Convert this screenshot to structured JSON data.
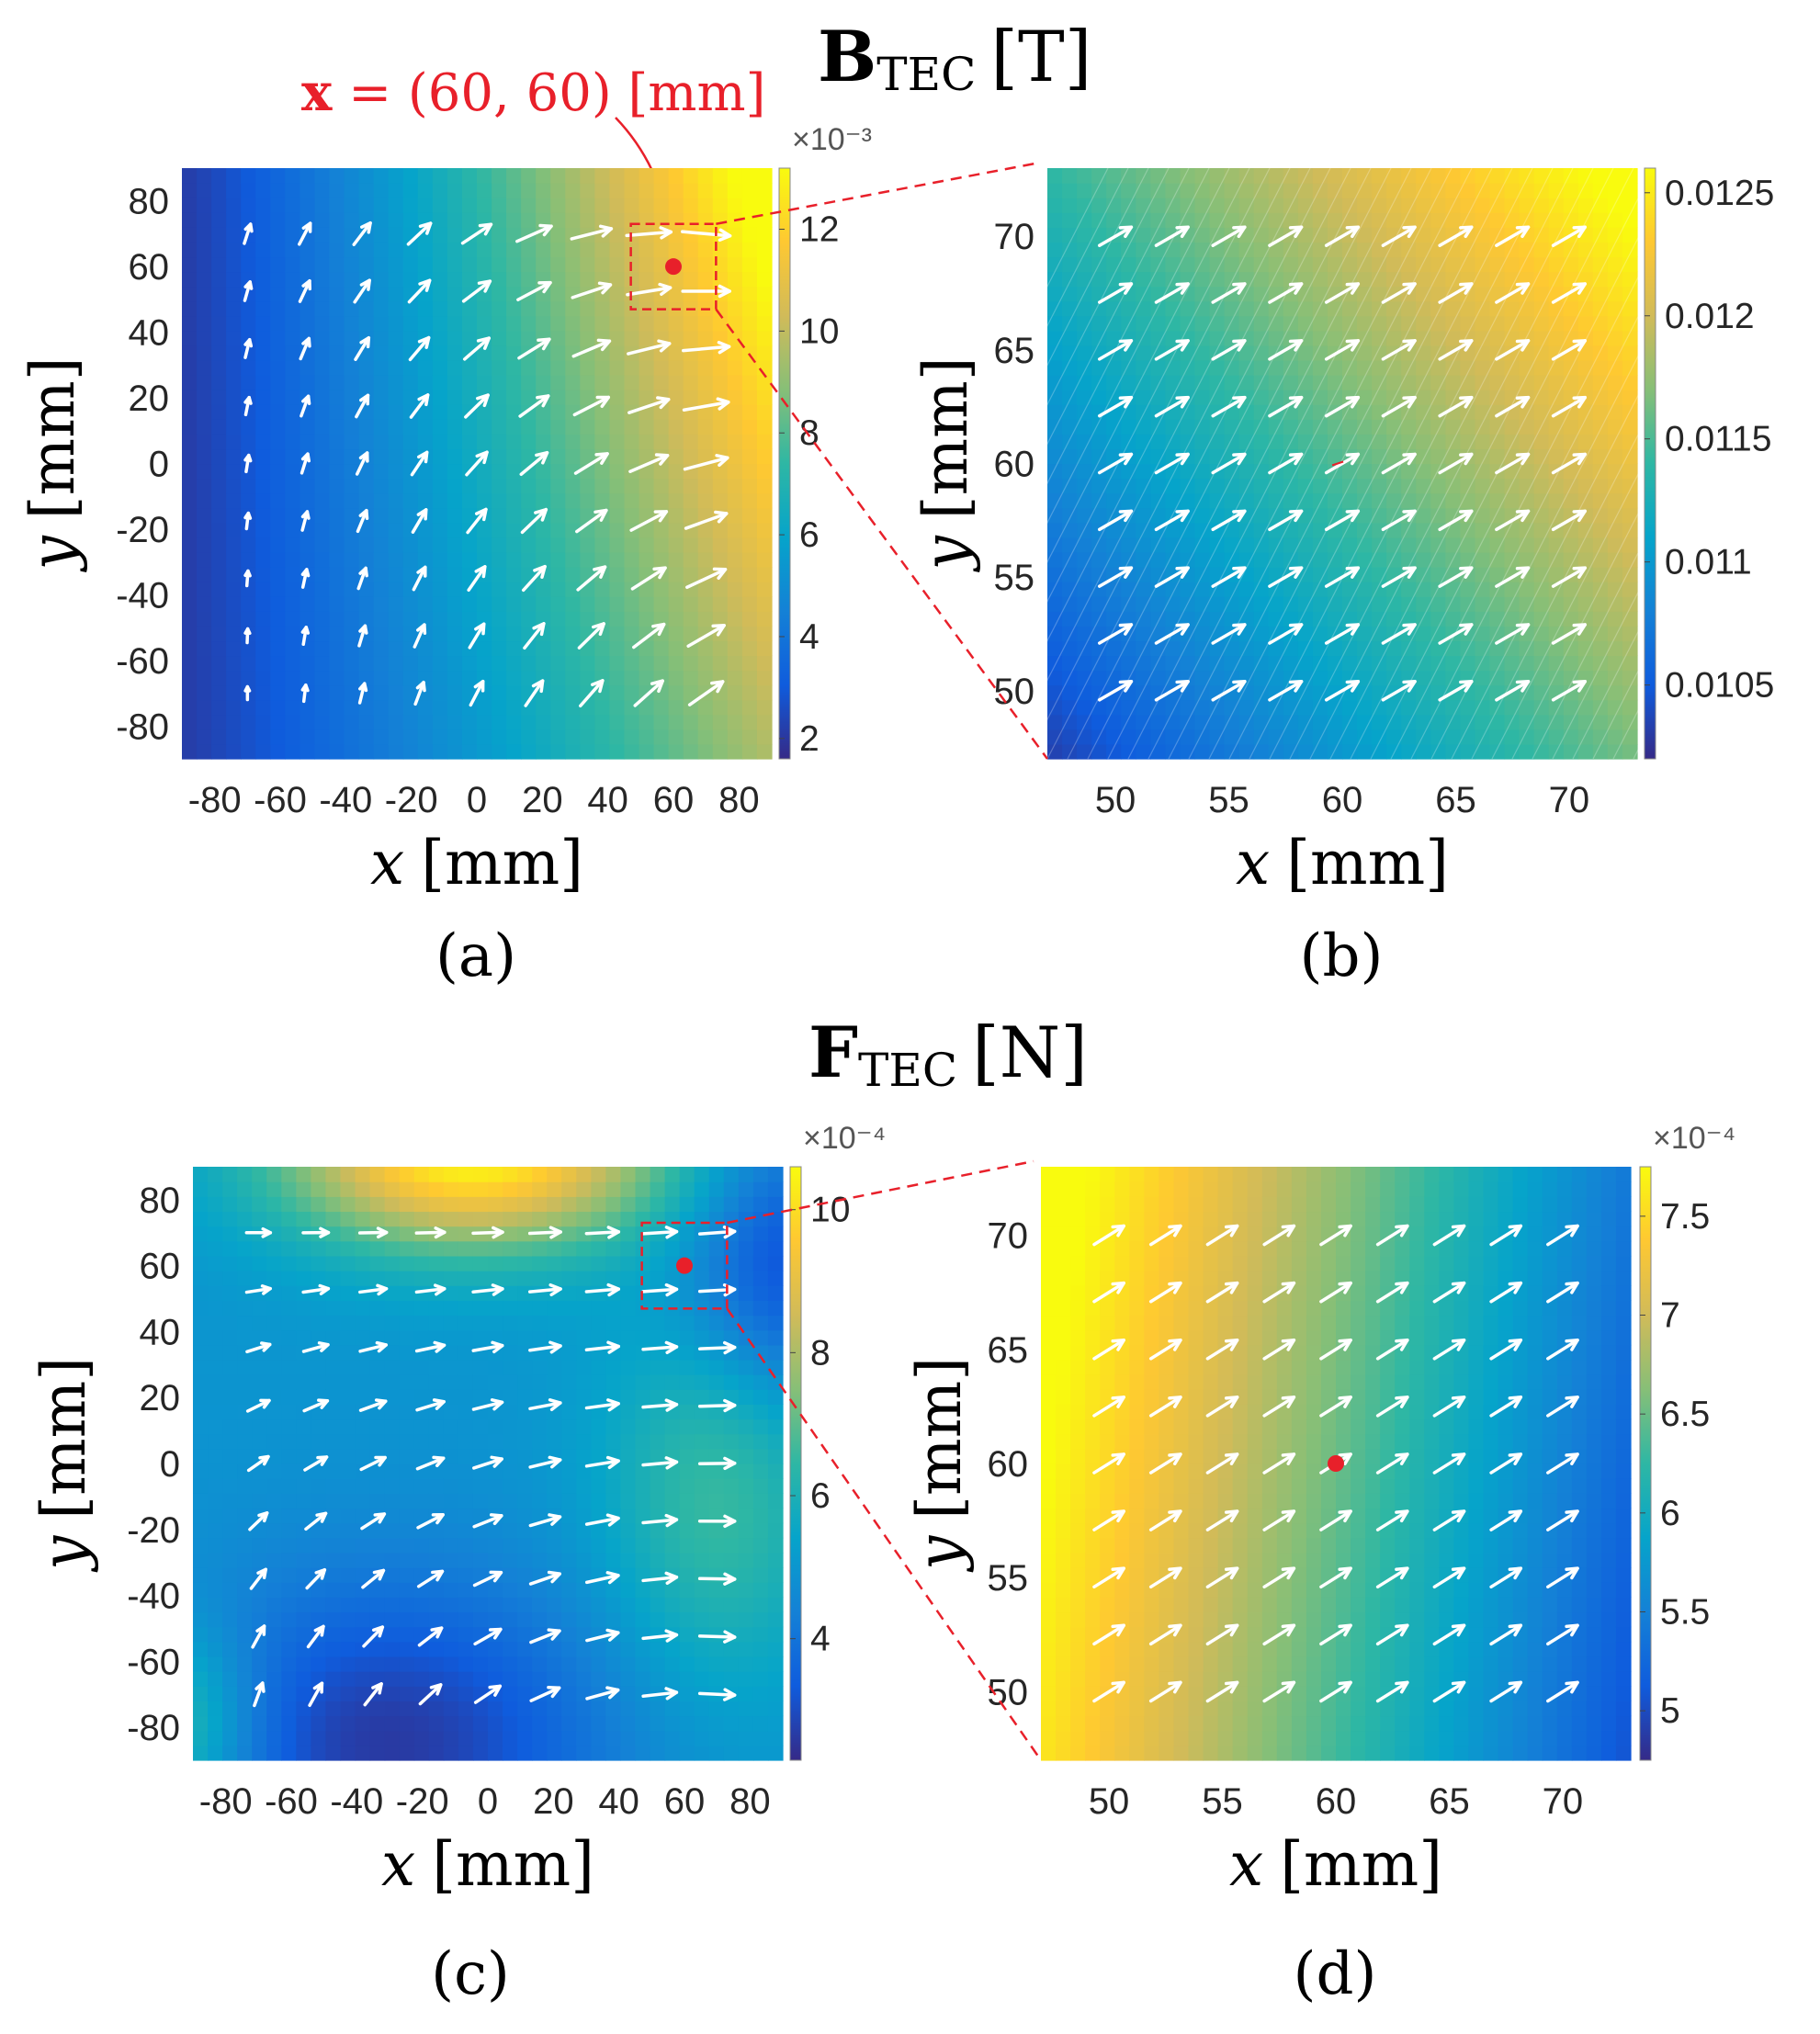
{
  "colors": {
    "annotation_red": "#e8202a",
    "arrow_white": "#ffffff",
    "colormap_parula": [
      "#352a87",
      "#0f5cdd",
      "#1481d6",
      "#06a4ca",
      "#2eb7a4",
      "#87bf77",
      "#d1bb59",
      "#fec832",
      "#f9fb0e"
    ]
  },
  "sections": [
    {
      "title_main": "B",
      "title_sub": "TEC",
      "title_unit": "[T]"
    },
    {
      "title_main": "F",
      "title_sub": "TEC",
      "title_unit": "[N]"
    }
  ],
  "callout": {
    "text": "x = (60, 60) [mm]",
    "bold_part": "x",
    "rest": " = (60, 60) [mm]"
  },
  "chart_data": [
    {
      "id": "a",
      "panel_label": "(a)",
      "type": "heatmap",
      "quantity": "B_TEC",
      "unit": "T",
      "xlabel_var": "x",
      "xlabel_unit": "[mm]",
      "ylabel_var": "y",
      "ylabel_unit": "[mm]",
      "xlim": [
        -90,
        90
      ],
      "ylim": [
        -90,
        90
      ],
      "xticks": [
        -80,
        -60,
        -40,
        -20,
        0,
        20,
        40,
        60,
        80
      ],
      "yticks": [
        -80,
        -60,
        -40,
        -20,
        0,
        20,
        40,
        60,
        80
      ],
      "colorbar": {
        "min": 0.0016,
        "max": 0.0132,
        "ticks": [
          2,
          4,
          6,
          8,
          10,
          12
        ],
        "exponent_label": "×10⁻³"
      },
      "vector_grid": {
        "x": [
          -70,
          -52.5,
          -35,
          -17.5,
          0,
          17.5,
          35,
          52.5,
          70
        ],
        "y": [
          -70,
          -52.5,
          -35,
          -17.5,
          0,
          17.5,
          35,
          52.5,
          70
        ]
      },
      "marker": {
        "x": 60,
        "y": 60
      },
      "zoom_box": {
        "x": [
          47,
          73
        ],
        "y": [
          47,
          73
        ]
      }
    },
    {
      "id": "b",
      "panel_label": "(b)",
      "type": "heatmap",
      "quantity": "B_TEC",
      "unit": "T",
      "xlabel_var": "x",
      "xlabel_unit": "[mm]",
      "ylabel_var": "y",
      "ylabel_unit": "[mm]",
      "xlim": [
        47,
        73
      ],
      "ylim": [
        47,
        73
      ],
      "xticks": [
        50,
        55,
        60,
        65,
        70
      ],
      "yticks": [
        50,
        55,
        60,
        65,
        70
      ],
      "colorbar": {
        "min": 0.0102,
        "max": 0.0126,
        "ticks": [
          "0.0105",
          "0.011",
          "0.0115",
          "0.012",
          "0.0125"
        ]
      },
      "vector_grid": {
        "x": [
          50,
          52.5,
          55,
          57.5,
          60,
          62.5,
          65,
          67.5,
          70
        ],
        "y": [
          50,
          52.5,
          55,
          57.5,
          60,
          62.5,
          65,
          67.5,
          70
        ]
      },
      "marker": {
        "x": 60,
        "y": 60
      }
    },
    {
      "id": "c",
      "panel_label": "(c)",
      "type": "heatmap",
      "quantity": "F_TEC",
      "unit": "N",
      "xlabel_var": "x",
      "xlabel_unit": "[mm]",
      "ylabel_var": "y",
      "ylabel_unit": "[mm]",
      "xlim": [
        -90,
        90
      ],
      "ylim": [
        -90,
        90
      ],
      "xticks": [
        -80,
        -60,
        -40,
        -20,
        0,
        20,
        40,
        60,
        80
      ],
      "yticks": [
        -80,
        -60,
        -40,
        -20,
        0,
        20,
        40,
        60,
        80
      ],
      "colorbar": {
        "min": 0.00023,
        "max": 0.00106,
        "ticks": [
          4,
          6,
          8,
          10
        ],
        "exponent_label": "×10⁻⁴"
      },
      "vector_grid": {
        "x": [
          -70,
          -52.5,
          -35,
          -17.5,
          0,
          17.5,
          35,
          52.5,
          70
        ],
        "y": [
          -70,
          -52.5,
          -35,
          -17.5,
          0,
          17.5,
          35,
          52.5,
          70
        ]
      },
      "marker": {
        "x": 60,
        "y": 60
      },
      "zoom_box": {
        "x": [
          47,
          73
        ],
        "y": [
          47,
          73
        ]
      }
    },
    {
      "id": "d",
      "panel_label": "(d)",
      "type": "heatmap",
      "quantity": "F_TEC",
      "unit": "N",
      "xlabel_var": "x",
      "xlabel_unit": "[mm]",
      "ylabel_var": "y",
      "ylabel_unit": "[mm]",
      "xlim": [
        47,
        73
      ],
      "ylim": [
        47,
        73
      ],
      "xticks": [
        50,
        55,
        60,
        65,
        70
      ],
      "yticks": [
        50,
        55,
        60,
        65,
        70
      ],
      "colorbar": {
        "min": 0.000475,
        "max": 0.000775,
        "ticks": [
          "5",
          "5.5",
          "6",
          "6.5",
          "7",
          "7.5"
        ],
        "exponent_label": "×10⁻⁴"
      },
      "vector_grid": {
        "x": [
          50,
          52.5,
          55,
          57.5,
          60,
          62.5,
          65,
          67.5,
          70
        ],
        "y": [
          50,
          52.5,
          55,
          57.5,
          60,
          62.5,
          65,
          67.5,
          70
        ]
      },
      "marker": {
        "x": 60,
        "y": 60
      }
    }
  ]
}
